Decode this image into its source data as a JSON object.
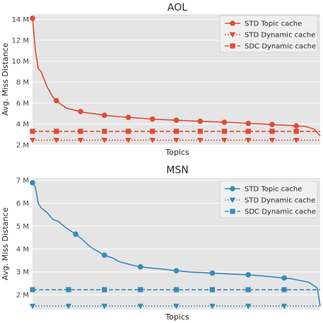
{
  "chart_data": [
    {
      "type": "line",
      "title": "AOL",
      "xlabel": "Topics",
      "ylabel": "Avg. Miss Distance",
      "ylim": [
        2000000,
        14500000
      ],
      "yticks": [
        2000000,
        4000000,
        6000000,
        8000000,
        10000000,
        12000000,
        14000000
      ],
      "ytick_labels": [
        "2 M",
        "4 M",
        "6 M",
        "8 M",
        "10 M",
        "12 M",
        "14 M"
      ],
      "xlim": [
        0,
        1
      ],
      "grid": true,
      "legend_position": "top-right",
      "series": [
        {
          "name": "STD Topic cache",
          "style": "solid",
          "marker": "circle",
          "x": [
            0,
            0.01,
            0.02,
            0.03,
            0.05,
            0.07,
            0.08,
            0.1,
            0.12,
            0.15,
            0.18,
            0.22,
            0.26,
            0.3,
            0.35,
            0.4,
            0.45,
            0.5,
            0.55,
            0.6,
            0.65,
            0.7,
            0.75,
            0.8,
            0.85,
            0.9,
            0.95,
            0.98,
            1.0
          ],
          "y": [
            14100000,
            11000000,
            9300000,
            9000000,
            7600000,
            6600000,
            6300000,
            5850000,
            5500000,
            5300000,
            5100000,
            4950000,
            4800000,
            4700000,
            4600000,
            4500000,
            4420000,
            4360000,
            4300000,
            4240000,
            4180000,
            4130000,
            4060000,
            4000000,
            3920000,
            3850000,
            3760000,
            3500000,
            2850000
          ],
          "marker_x": [
            0,
            0.083,
            0.167,
            0.25,
            0.333,
            0.417,
            0.5,
            0.583,
            0.667,
            0.75,
            0.833,
            0.917
          ]
        },
        {
          "name": "STD Dynamic cache",
          "style": "dotted",
          "marker": "triangle-down",
          "x": [
            0,
            1
          ],
          "y": [
            2450000,
            2450000
          ],
          "marker_x": [
            0,
            0.083,
            0.167,
            0.25,
            0.333,
            0.417,
            0.5,
            0.583,
            0.667,
            0.75,
            0.833,
            0.917
          ]
        },
        {
          "name": "SDC Dynamic cache",
          "style": "dashed",
          "marker": "square",
          "x": [
            0,
            1
          ],
          "y": [
            3300000,
            3300000
          ],
          "marker_x": [
            0,
            0.083,
            0.167,
            0.25,
            0.333,
            0.417,
            0.5,
            0.583,
            0.667,
            0.75,
            0.833,
            0.917
          ]
        }
      ]
    },
    {
      "type": "line",
      "title": "MSN",
      "xlabel": "Topics",
      "ylabel": "Avg. Miss Distance",
      "ylim": [
        1350000,
        7100000
      ],
      "yticks": [
        2000000,
        3000000,
        4000000,
        5000000,
        6000000,
        7000000
      ],
      "ytick_labels": [
        "2 M",
        "3 M",
        "4 M",
        "5 M",
        "6 M",
        "7 M"
      ],
      "xlim": [
        0,
        1
      ],
      "grid": true,
      "legend_position": "top-right",
      "series": [
        {
          "name": "STD Topic cache",
          "style": "solid",
          "marker": "circle",
          "x": [
            0,
            0.01,
            0.02,
            0.03,
            0.05,
            0.07,
            0.09,
            0.12,
            0.15,
            0.17,
            0.2,
            0.22,
            0.25,
            0.28,
            0.3,
            0.33,
            0.36,
            0.4,
            0.45,
            0.5,
            0.55,
            0.6,
            0.65,
            0.7,
            0.75,
            0.8,
            0.85,
            0.9,
            0.93,
            0.96,
            0.99,
            1.0
          ],
          "y": [
            6900000,
            6700000,
            6000000,
            5800000,
            5600000,
            5300000,
            5200000,
            4900000,
            4650000,
            4450000,
            4100000,
            3950000,
            3730000,
            3600000,
            3450000,
            3350000,
            3250000,
            3180000,
            3120000,
            3050000,
            2990000,
            2960000,
            2930000,
            2900000,
            2870000,
            2820000,
            2760000,
            2700000,
            2620000,
            2550000,
            2300000,
            1500000
          ],
          "marker_x": [
            0,
            0.15,
            0.25,
            0.375,
            0.5,
            0.625,
            0.75,
            0.875
          ]
        },
        {
          "name": "STD Dynamic cache",
          "style": "dotted",
          "marker": "triangle-down",
          "x": [
            0,
            1
          ],
          "y": [
            1500000,
            1500000
          ],
          "marker_x": [
            0,
            0.125,
            0.25,
            0.375,
            0.5,
            0.625,
            0.75,
            0.875
          ]
        },
        {
          "name": "SDC Dynamic cache",
          "style": "dashed",
          "marker": "square",
          "x": [
            0,
            1
          ],
          "y": [
            2220000,
            2220000
          ],
          "marker_x": [
            0,
            0.125,
            0.25,
            0.375,
            0.5,
            0.625,
            0.75,
            0.875
          ]
        }
      ]
    }
  ],
  "colors": {
    "aol": "#e24a33",
    "msn": "#348abd",
    "plot_bg": "#e5e5e5",
    "grid": "#ffffff",
    "legend_bg": "#f0f0f0",
    "text": "#262626",
    "tick_text": "#444444"
  }
}
